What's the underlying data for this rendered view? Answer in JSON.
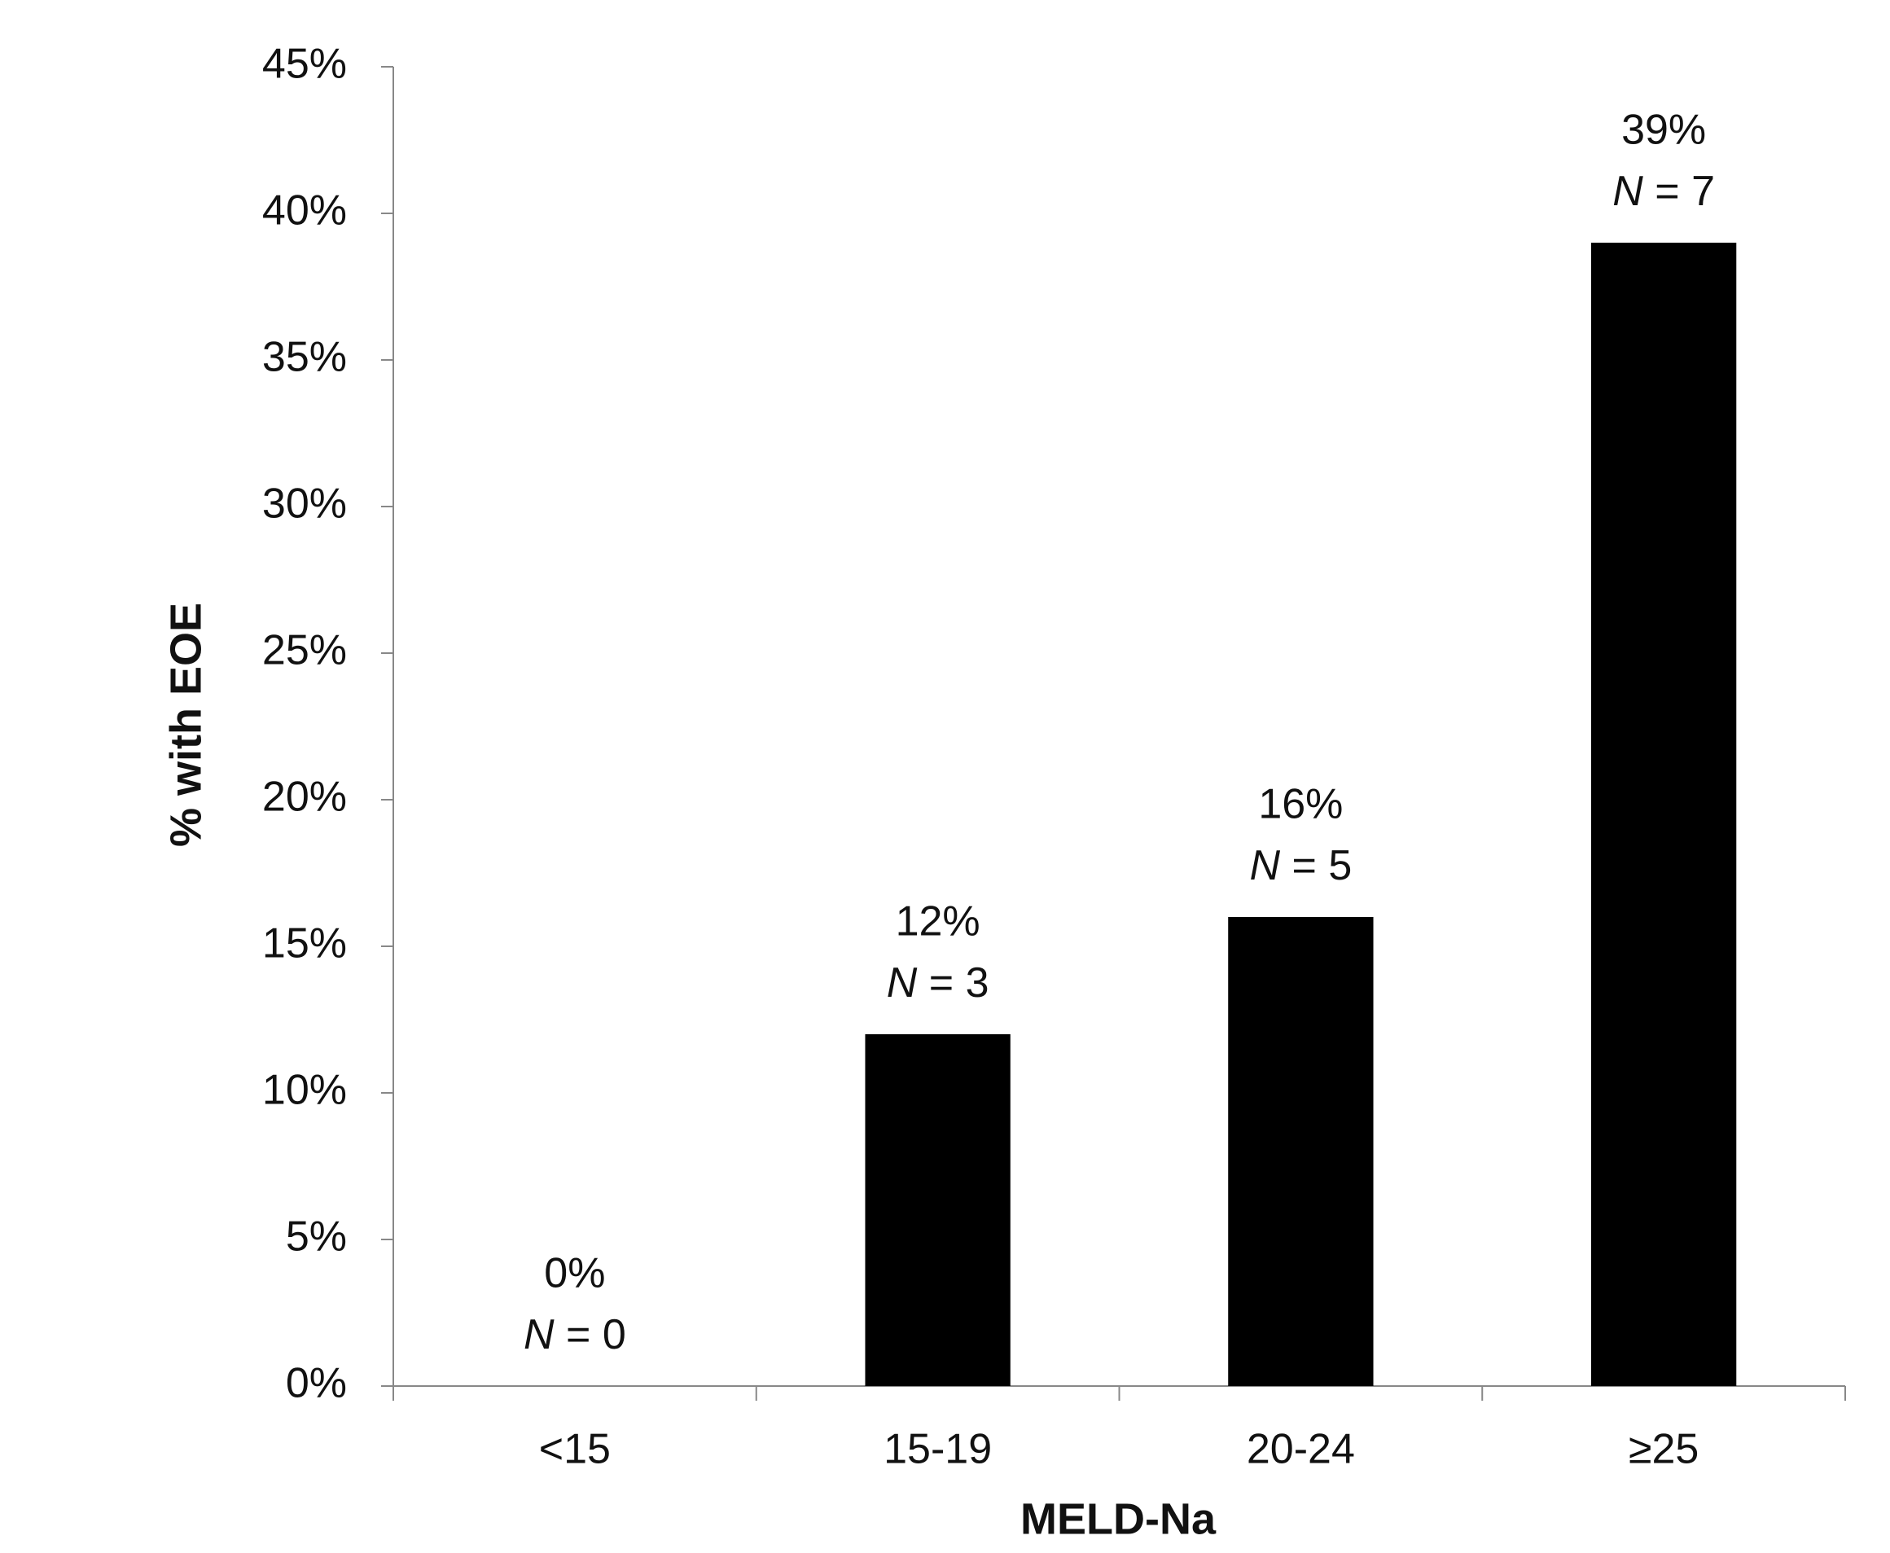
{
  "chart_data": {
    "type": "bar",
    "xlabel": "MELD-Na",
    "ylabel": "% with EOE",
    "categories": [
      "<15",
      "15-19",
      "20-24",
      "≥25"
    ],
    "values": [
      0,
      12,
      16,
      39
    ],
    "value_labels": [
      "0%",
      "12%",
      "16%",
      "39%"
    ],
    "annotations": [
      "N = 0",
      "N = 3",
      "N = 5",
      "N = 7"
    ],
    "color": "#000000",
    "ylim": [
      0,
      45
    ],
    "yticks": [
      {
        "value": 0,
        "label": "0%"
      },
      {
        "value": 5,
        "label": "5%"
      },
      {
        "value": 10,
        "label": "10%"
      },
      {
        "value": 15,
        "label": "15%"
      },
      {
        "value": 20,
        "label": "20%"
      },
      {
        "value": 25,
        "label": "25%"
      },
      {
        "value": 30,
        "label": "30%"
      },
      {
        "value": 35,
        "label": "35%"
      },
      {
        "value": 40,
        "label": "40%"
      },
      {
        "value": 45,
        "label": "45%"
      }
    ],
    "grid": false
  }
}
